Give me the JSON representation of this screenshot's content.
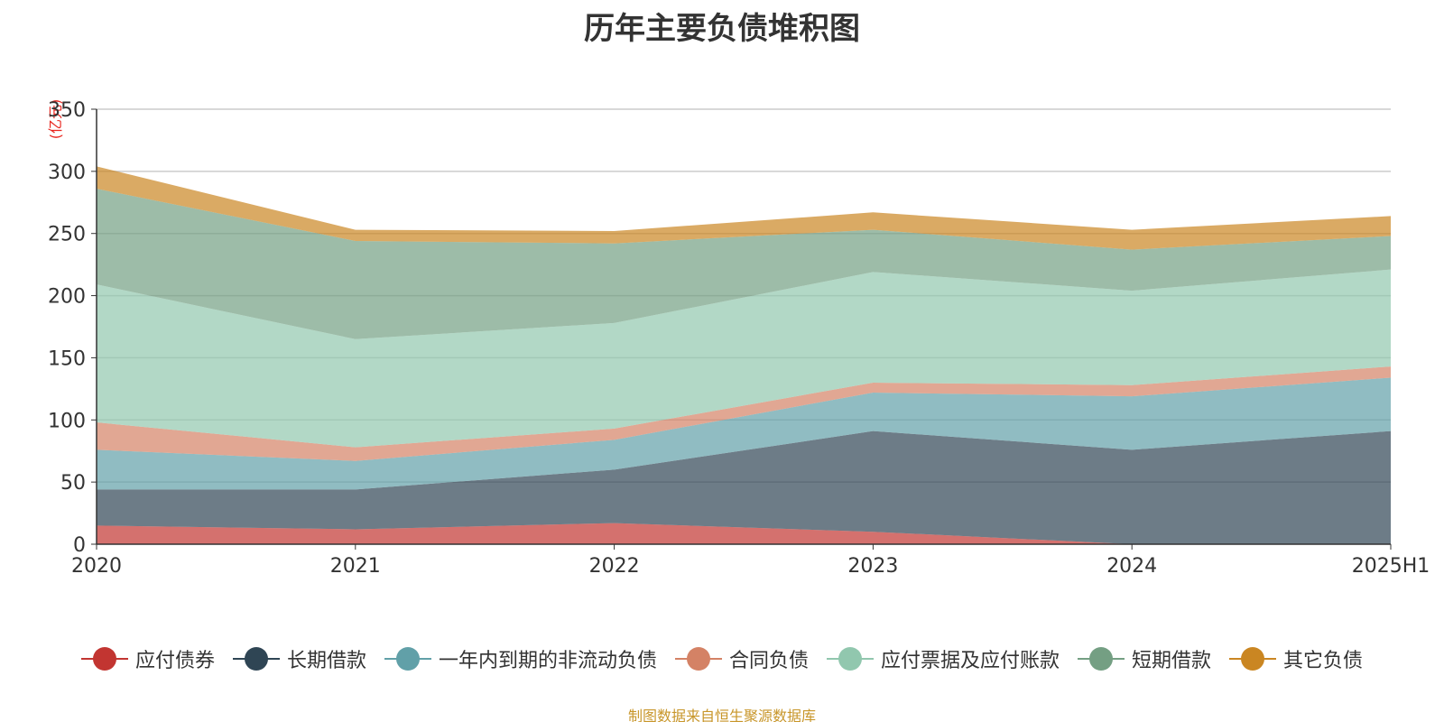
{
  "title": "历年主要负债堆积图",
  "unit_label": "(亿元)",
  "source": "制图数据来自恒生聚源数据库",
  "chart_data": {
    "type": "area",
    "stacked": true,
    "title": "历年主要负债堆积图",
    "ylabel": "(亿元)",
    "x": [
      "2020",
      "2021",
      "2022",
      "2023",
      "2024",
      "2025H1"
    ],
    "ylim": [
      0,
      350
    ],
    "yticks": [
      0,
      50,
      100,
      150,
      200,
      250,
      300,
      350
    ],
    "grid": true,
    "legend_position": "bottom",
    "series": [
      {
        "name": "应付债券",
        "color": "#c23531",
        "values": [
          15,
          12,
          17,
          10,
          0,
          0
        ]
      },
      {
        "name": "长期借款",
        "color": "#2f4554",
        "values": [
          29,
          32,
          43,
          81,
          76,
          91
        ]
      },
      {
        "name": "一年内到期的非流动负债",
        "color": "#61a0a8",
        "values": [
          32,
          23,
          24,
          31,
          43,
          43
        ]
      },
      {
        "name": "合同负债",
        "color": "#d48265",
        "values": [
          22,
          11,
          9,
          8,
          9,
          9
        ]
      },
      {
        "name": "应付票据及应付账款",
        "color": "#91c7ae",
        "values": [
          111,
          87,
          85,
          89,
          76,
          78
        ]
      },
      {
        "name": "短期借款",
        "color": "#749f83",
        "values": [
          77,
          79,
          64,
          34,
          33,
          27
        ]
      },
      {
        "name": "其它负债",
        "color": "#ca8622",
        "values": [
          18,
          9,
          10,
          14,
          16,
          16
        ]
      }
    ]
  }
}
